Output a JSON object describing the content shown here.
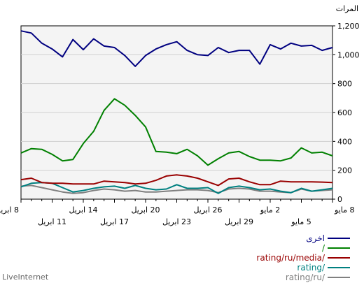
{
  "chart_data": {
    "type": "line",
    "ylabel": "المرات",
    "ylim": [
      0,
      1200
    ],
    "y_ticks": [
      0,
      200,
      400,
      600,
      800,
      1000,
      1200
    ],
    "y_tick_labels": [
      "0",
      "200",
      "400",
      "600",
      "800",
      "1,000",
      "1,200"
    ],
    "grid": true,
    "legend_position": "bottom-right",
    "x_tick_labels": [
      {
        "index": 0,
        "row": 1,
        "label": "8 مايو"
      },
      {
        "index": 3,
        "row": 2,
        "label": "5 مايو"
      },
      {
        "index": 6,
        "row": 1,
        "label": "2 مايو"
      },
      {
        "index": 9,
        "row": 2,
        "label": "29 ابريل"
      },
      {
        "index": 12,
        "row": 1,
        "label": "26 ابريل"
      },
      {
        "index": 15,
        "row": 2,
        "label": "23 ابريل"
      },
      {
        "index": 18,
        "row": 1,
        "label": "20 ابريل"
      },
      {
        "index": 21,
        "row": 2,
        "label": "17 ابريل"
      },
      {
        "index": 24,
        "row": 1,
        "label": "14 ابريل"
      },
      {
        "index": 27,
        "row": 2,
        "label": "11 ابريل"
      },
      {
        "index": 30,
        "row": 1,
        "label": "8 ابريل"
      }
    ],
    "series": [
      {
        "name": "اخرى",
        "color": "#000080",
        "values": [
          1050,
          1030,
          1065,
          1060,
          1080,
          1040,
          1070,
          935,
          1030,
          1030,
          1015,
          1050,
          995,
          1000,
          1030,
          1090,
          1070,
          1040,
          995,
          920,
          995,
          1050,
          1060,
          1110,
          1035,
          1105,
          985,
          1040,
          1080,
          1150,
          1165
        ]
      },
      {
        "name": "/",
        "color": "#008000",
        "values": [
          300,
          325,
          320,
          355,
          285,
          265,
          270,
          270,
          295,
          330,
          320,
          280,
          235,
          300,
          345,
          315,
          325,
          330,
          500,
          580,
          650,
          695,
          615,
          470,
          385,
          275,
          265,
          310,
          345,
          350,
          320
        ]
      },
      {
        "name": "rating/ru/media/",
        "color": "#990000",
        "values": [
          115,
          118,
          120,
          120,
          120,
          125,
          100,
          100,
          120,
          145,
          140,
          95,
          120,
          145,
          160,
          168,
          160,
          130,
          110,
          105,
          115,
          120,
          125,
          105,
          105,
          105,
          110,
          110,
          115,
          145,
          135
        ]
      },
      {
        "name": "rating/",
        "color": "#008080",
        "values": [
          75,
          65,
          55,
          75,
          45,
          55,
          70,
          65,
          80,
          90,
          80,
          40,
          80,
          75,
          75,
          100,
          70,
          65,
          75,
          95,
          75,
          90,
          85,
          75,
          60,
          50,
          80,
          110,
          115,
          110,
          85
        ]
      },
      {
        "name": "rating/ru/",
        "color": "#808080",
        "values": [
          65,
          60,
          55,
          70,
          45,
          50,
          55,
          55,
          70,
          75,
          70,
          45,
          60,
          65,
          65,
          60,
          55,
          50,
          50,
          60,
          55,
          65,
          70,
          60,
          45,
          40,
          50,
          65,
          80,
          95,
          90
        ]
      }
    ]
  },
  "legend": [
    {
      "label": "اخرى",
      "color": "#000080"
    },
    {
      "label": "/",
      "color": "#008000"
    },
    {
      "label": "rating/ru/media/",
      "color": "#990000"
    },
    {
      "label": "rating/",
      "color": "#008080"
    },
    {
      "label": "rating/ru/",
      "color": "#808080"
    }
  ],
  "footer": "LiveInternet"
}
